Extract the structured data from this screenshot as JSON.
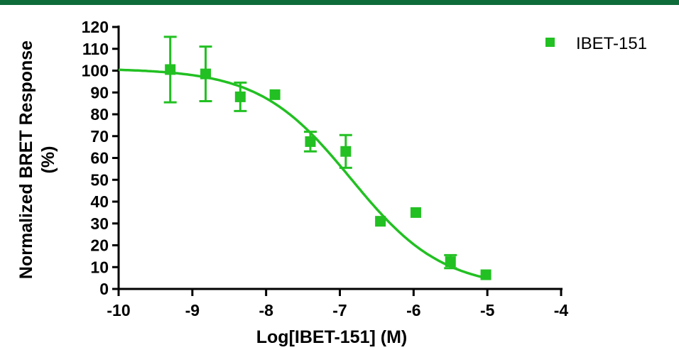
{
  "chart_data": {
    "type": "scatter",
    "title": "",
    "xlabel": "Log[IBET-151] (M)",
    "ylabel_line1": "Normalized BRET Response",
    "ylabel_line2": "(%)",
    "xlim": [
      -10,
      -4
    ],
    "ylim": [
      0,
      120
    ],
    "x_ticks": [
      -10,
      -9,
      -8,
      -7,
      -6,
      -5,
      -4
    ],
    "x_tick_labels": [
      "-10",
      "-9",
      "-8",
      "-7",
      "-6",
      "-5",
      "-4"
    ],
    "y_ticks": [
      0,
      10,
      20,
      30,
      40,
      50,
      60,
      70,
      80,
      90,
      100,
      110,
      120
    ],
    "y_tick_labels": [
      "0",
      "10",
      "20",
      "30",
      "40",
      "50",
      "60",
      "70",
      "80",
      "90",
      "100",
      "110",
      "120"
    ],
    "grid": false,
    "legend_position": "top-right",
    "color": "#22c022",
    "series": [
      {
        "name": "IBET-151",
        "x": [
          -9.3,
          -8.82,
          -8.35,
          -7.88,
          -7.4,
          -6.92,
          -6.45,
          -5.97,
          -5.5,
          -5.02
        ],
        "y": [
          100.5,
          98.5,
          88,
          89,
          67.5,
          63,
          31,
          35,
          12.5,
          6.5
        ],
        "yerr": [
          15,
          12.5,
          6.5,
          0,
          4.5,
          7.5,
          0,
          0,
          3,
          0
        ]
      }
    ],
    "fit": {
      "model": "sigmoidal dose-response",
      "top": 101,
      "bottom": 0,
      "log_ec50": -6.85,
      "hill_slope": -0.7,
      "x_range": [
        -10,
        -5
      ]
    }
  }
}
